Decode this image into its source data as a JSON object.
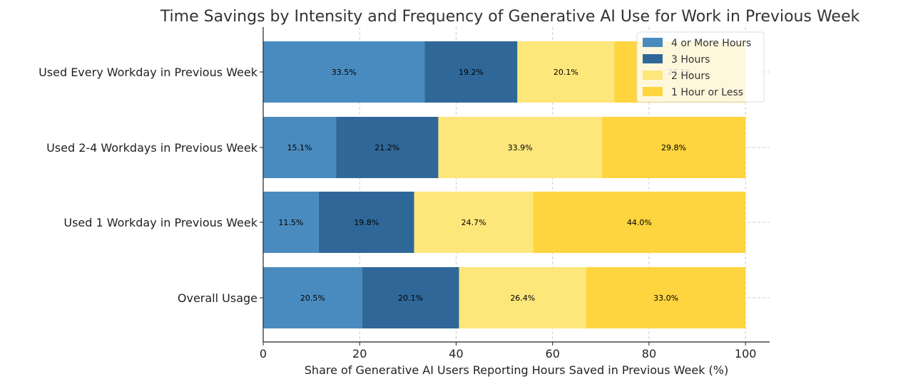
{
  "chart_data": {
    "type": "bar",
    "orientation": "horizontal",
    "stacked": true,
    "title": "Time Savings by Intensity and Frequency of Generative AI Use for Work in Previous Week",
    "xlabel": "Share of Generative AI Users Reporting Hours Saved in Previous Week (%)",
    "ylabel": "",
    "xlim": [
      0,
      105
    ],
    "xticks": [
      0,
      20,
      40,
      60,
      80,
      100
    ],
    "grid": true,
    "legend_position": "top-right",
    "categories": [
      "Used Every Workday in Previous Week",
      "Used 2-4 Workdays in Previous Week",
      "Used 1 Workday in Previous Week",
      "Overall Usage"
    ],
    "series": [
      {
        "name": "4 or More Hours",
        "color": "#4a8bbf",
        "values": [
          33.5,
          15.1,
          11.5,
          20.5
        ],
        "labels": [
          "33.5%",
          "15.1%",
          "11.5%",
          "20.5%"
        ]
      },
      {
        "name": "3 Hours",
        "color": "#2f6898",
        "values": [
          19.2,
          21.2,
          19.8,
          20.1
        ],
        "labels": [
          "19.2%",
          "21.2%",
          "19.8%",
          "20.1%"
        ]
      },
      {
        "name": "2 Hours",
        "color": "#fde67a",
        "values": [
          20.1,
          33.9,
          24.7,
          26.4
        ],
        "labels": [
          "20.1%",
          "33.9%",
          "24.7%",
          "26.4%"
        ]
      },
      {
        "name": "1 Hour or Less",
        "color": "#fed43f",
        "values": [
          27.2,
          29.8,
          44.0,
          33.0
        ],
        "labels": [
          "27.2%",
          "29.8%",
          "44.0%",
          "33.0%"
        ]
      }
    ]
  }
}
